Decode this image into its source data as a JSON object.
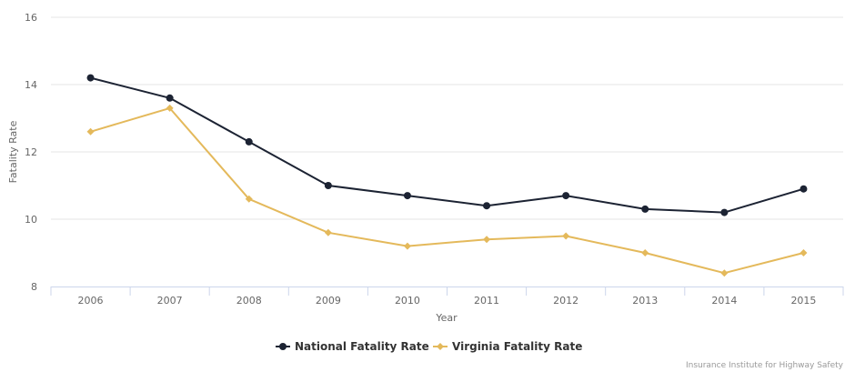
{
  "chart_data": {
    "type": "line",
    "title": "",
    "xlabel": "Year",
    "ylabel": "Fatality Rate",
    "categories": [
      "2006",
      "2007",
      "2008",
      "2009",
      "2010",
      "2011",
      "2012",
      "2013",
      "2014",
      "2015"
    ],
    "ylim": [
      8,
      16
    ],
    "yticks": [
      8,
      10,
      12,
      14,
      16
    ],
    "ytick_labels": [
      "8",
      "10",
      "12",
      "14",
      "16"
    ],
    "grid": true,
    "legend_position": "bottom-center",
    "series": [
      {
        "name": "National Fatality Rate",
        "color": "#1c2333",
        "marker": "circle",
        "values": [
          14.2,
          13.6,
          12.3,
          11.0,
          10.7,
          10.4,
          10.7,
          10.3,
          10.2,
          10.9
        ]
      },
      {
        "name": "Virginia Fatality Rate",
        "color": "#e4b95b",
        "marker": "diamond",
        "values": [
          12.6,
          13.3,
          10.6,
          9.6,
          9.2,
          9.4,
          9.5,
          9.0,
          8.4,
          9.0
        ]
      }
    ],
    "credit": "Insurance Institute for Highway Safety"
  },
  "colors": {
    "gridline": "#e6e6e6",
    "axis_line": "#ccd6eb",
    "text": "#666666"
  }
}
